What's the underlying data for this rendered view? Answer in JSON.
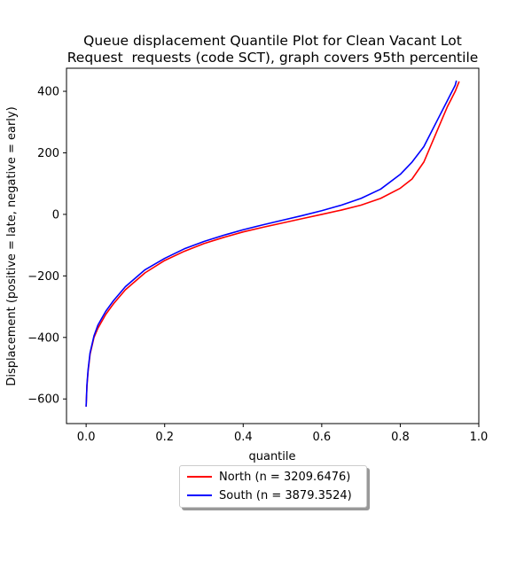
{
  "chart_data": {
    "type": "line",
    "title_line1": "Queue displacement Quantile Plot for Clean Vacant Lot",
    "title_line2": "Request  requests (code SCT), graph covers 95th percentile",
    "xlabel": "quantile",
    "ylabel": "Displacement (positive = late, negative = early)",
    "xlim": [
      -0.05,
      1.0
    ],
    "ylim": [
      -680,
      475
    ],
    "xticks": [
      0.0,
      0.2,
      0.4,
      0.6,
      0.8,
      1.0
    ],
    "xtick_labels": [
      "0.0",
      "0.2",
      "0.4",
      "0.6",
      "0.8",
      "1.0"
    ],
    "yticks": [
      400,
      200,
      0,
      -200,
      -400,
      -600
    ],
    "ytick_labels": [
      "400",
      "200",
      "0",
      "−200",
      "−400",
      "−600"
    ],
    "grid": false,
    "legend_position": "below center",
    "series": [
      {
        "name": "North (n = 3209.6476)",
        "color": "#ff0000",
        "x": [
          0.0,
          0.002,
          0.005,
          0.01,
          0.02,
          0.03,
          0.05,
          0.07,
          0.1,
          0.15,
          0.2,
          0.25,
          0.3,
          0.35,
          0.4,
          0.45,
          0.5,
          0.55,
          0.6,
          0.65,
          0.7,
          0.75,
          0.8,
          0.83,
          0.86,
          0.88,
          0.9,
          0.92,
          0.94,
          0.95
        ],
        "y": [
          -625,
          -560,
          -510,
          -455,
          -400,
          -370,
          -325,
          -290,
          -245,
          -190,
          -150,
          -120,
          -95,
          -75,
          -57,
          -42,
          -28,
          -14,
          0,
          14,
          30,
          52,
          85,
          115,
          170,
          230,
          290,
          350,
          400,
          432
        ]
      },
      {
        "name": "South (n = 3879.3524)",
        "color": "#0000ff",
        "x": [
          0.0,
          0.002,
          0.005,
          0.01,
          0.02,
          0.03,
          0.05,
          0.07,
          0.1,
          0.15,
          0.2,
          0.25,
          0.3,
          0.35,
          0.4,
          0.45,
          0.5,
          0.55,
          0.6,
          0.65,
          0.7,
          0.75,
          0.8,
          0.83,
          0.86,
          0.88,
          0.9,
          0.92,
          0.94,
          0.943
        ],
        "y": [
          -625,
          -555,
          -505,
          -450,
          -395,
          -360,
          -315,
          -280,
          -235,
          -180,
          -143,
          -112,
          -88,
          -68,
          -50,
          -34,
          -19,
          -4,
          12,
          30,
          52,
          82,
          130,
          170,
          220,
          270,
          320,
          370,
          420,
          435
        ]
      }
    ]
  }
}
